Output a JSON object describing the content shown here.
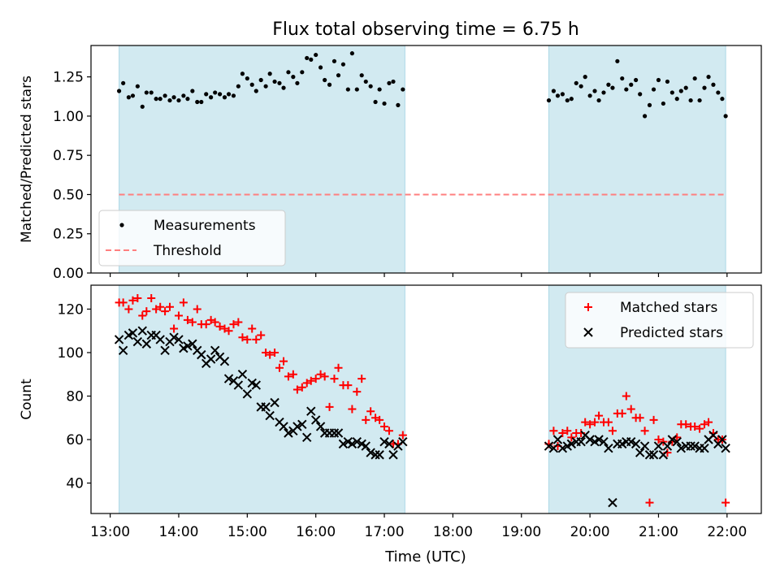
{
  "figure": {
    "title": "Flux total observing time = 6.75 h",
    "xlabel": "Time (UTC)"
  },
  "colors": {
    "shade": "#add8e6",
    "matched": "#ff0000",
    "predicted": "#000000",
    "threshold": "#ff7f7f",
    "measurements": "#000000"
  },
  "chart_data": [
    {
      "type": "scatter",
      "ylabel": "Matched/Predicted stars",
      "xlim": [
        12.72,
        22.5
      ],
      "ylim": [
        0,
        1.45
      ],
      "yticks": [
        0.0,
        0.25,
        0.5,
        0.75,
        1.0,
        1.25
      ],
      "ytick_labels": [
        "0.00",
        "0.25",
        "0.50",
        "0.75",
        "1.00",
        "1.25"
      ],
      "xticks": [
        13,
        14,
        15,
        16,
        17,
        18,
        19,
        20,
        21,
        22
      ],
      "shaded_spans": [
        [
          13.13,
          17.3
        ],
        [
          19.4,
          21.98
        ]
      ],
      "legend": {
        "placement": "lower-left",
        "entries": [
          "Measurements",
          "Threshold"
        ]
      },
      "threshold": {
        "name": "Threshold",
        "y": 0.5,
        "x": [
          13.13,
          21.98
        ]
      },
      "series": [
        {
          "name": "Measurements",
          "x": [
            13.13,
            13.19,
            13.27,
            13.33,
            13.4,
            13.47,
            13.53,
            13.6,
            13.67,
            13.73,
            13.8,
            13.87,
            13.93,
            14.0,
            14.07,
            14.13,
            14.2,
            14.27,
            14.33,
            14.4,
            14.47,
            14.53,
            14.6,
            14.67,
            14.73,
            14.8,
            14.87,
            14.93,
            15.0,
            15.07,
            15.13,
            15.2,
            15.27,
            15.33,
            15.4,
            15.47,
            15.53,
            15.6,
            15.67,
            15.73,
            15.8,
            15.87,
            15.93,
            16.0,
            16.07,
            16.13,
            16.2,
            16.27,
            16.33,
            16.4,
            16.47,
            16.53,
            16.6,
            16.67,
            16.73,
            16.8,
            16.87,
            16.93,
            17.0,
            17.07,
            17.13,
            17.2,
            17.27,
            19.4,
            19.47,
            19.53,
            19.6,
            19.67,
            19.73,
            19.8,
            19.87,
            19.93,
            20.0,
            20.07,
            20.13,
            20.2,
            20.27,
            20.33,
            20.4,
            20.47,
            20.53,
            20.6,
            20.67,
            20.73,
            20.8,
            20.87,
            20.93,
            21.0,
            21.07,
            21.13,
            21.2,
            21.27,
            21.33,
            21.4,
            21.47,
            21.53,
            21.6,
            21.67,
            21.73,
            21.8,
            21.87,
            21.93,
            21.98
          ],
          "y": [
            1.16,
            1.21,
            1.12,
            1.13,
            1.19,
            1.06,
            1.15,
            1.15,
            1.11,
            1.11,
            1.13,
            1.1,
            1.12,
            1.1,
            1.13,
            1.11,
            1.16,
            1.09,
            1.09,
            1.14,
            1.12,
            1.15,
            1.14,
            1.12,
            1.14,
            1.13,
            1.19,
            1.27,
            1.24,
            1.2,
            1.16,
            1.23,
            1.19,
            1.27,
            1.22,
            1.21,
            1.18,
            1.28,
            1.25,
            1.21,
            1.28,
            1.37,
            1.36,
            1.39,
            1.31,
            1.23,
            1.2,
            1.35,
            1.26,
            1.33,
            1.17,
            1.4,
            1.17,
            1.26,
            1.22,
            1.19,
            1.09,
            1.17,
            1.08,
            1.21,
            1.22,
            1.07,
            1.17,
            1.1,
            1.16,
            1.13,
            1.14,
            1.1,
            1.11,
            1.21,
            1.19,
            1.25,
            1.13,
            1.16,
            1.1,
            1.15,
            1.2,
            1.18,
            1.35,
            1.24,
            1.17,
            1.2,
            1.23,
            1.14,
            1.0,
            1.07,
            1.17,
            1.23,
            1.08,
            1.22,
            1.15,
            1.11,
            1.16,
            1.18,
            1.1,
            1.24,
            1.1,
            1.18,
            1.25,
            1.2,
            1.15,
            1.11,
            1.0
          ]
        }
      ]
    },
    {
      "type": "scatter",
      "ylabel": "Count",
      "xlim": [
        12.72,
        22.5
      ],
      "ylim": [
        26,
        131
      ],
      "yticks": [
        40,
        60,
        80,
        100,
        120
      ],
      "ytick_labels": [
        "40",
        "60",
        "80",
        "100",
        "120"
      ],
      "xticks": [
        13,
        14,
        15,
        16,
        17,
        18,
        19,
        20,
        21,
        22
      ],
      "xtick_labels": [
        "13:00",
        "14:00",
        "15:00",
        "16:00",
        "17:00",
        "18:00",
        "19:00",
        "20:00",
        "21:00",
        "22:00"
      ],
      "shaded_spans": [
        [
          13.13,
          17.3
        ],
        [
          19.4,
          21.98
        ]
      ],
      "legend": {
        "placement": "upper-right",
        "entries": [
          "Matched stars",
          "Predicted stars"
        ]
      },
      "series": [
        {
          "name": "Matched stars",
          "marker": "plus",
          "x": [
            13.13,
            13.19,
            13.27,
            13.33,
            13.4,
            13.47,
            13.53,
            13.6,
            13.67,
            13.73,
            13.8,
            13.87,
            13.93,
            14.0,
            14.07,
            14.13,
            14.2,
            14.27,
            14.33,
            14.4,
            14.47,
            14.53,
            14.6,
            14.67,
            14.73,
            14.8,
            14.87,
            14.93,
            15.0,
            15.07,
            15.13,
            15.2,
            15.27,
            15.33,
            15.4,
            15.47,
            15.53,
            15.6,
            15.67,
            15.73,
            15.8,
            15.87,
            15.93,
            16.0,
            16.07,
            16.13,
            16.2,
            16.27,
            16.33,
            16.4,
            16.47,
            16.53,
            16.6,
            16.67,
            16.73,
            16.8,
            16.87,
            16.93,
            17.0,
            17.07,
            17.13,
            17.2,
            17.27,
            19.4,
            19.47,
            19.53,
            19.6,
            19.67,
            19.73,
            19.8,
            19.87,
            19.93,
            20.0,
            20.07,
            20.13,
            20.2,
            20.27,
            20.33,
            20.4,
            20.47,
            20.53,
            20.6,
            20.67,
            20.73,
            20.8,
            20.87,
            20.93,
            21.0,
            21.07,
            21.13,
            21.2,
            21.27,
            21.33,
            21.4,
            21.47,
            21.53,
            21.6,
            21.67,
            21.73,
            21.8,
            21.87,
            21.93,
            21.98
          ],
          "y": [
            123,
            123,
            120,
            124,
            125,
            117,
            119,
            125,
            120,
            121,
            119,
            121,
            111,
            117,
            123,
            115,
            114,
            120,
            113,
            113,
            115,
            114,
            112,
            111,
            110,
            113,
            114,
            107,
            106,
            111,
            106,
            108,
            100,
            99,
            100,
            93,
            96,
            89,
            90,
            83,
            84,
            86,
            87,
            88,
            90,
            89,
            75,
            88,
            93,
            85,
            85,
            74,
            82,
            88,
            69,
            73,
            70,
            69,
            66,
            64,
            58,
            58,
            62,
            58,
            64,
            57,
            63,
            64,
            61,
            63,
            63,
            68,
            67,
            68,
            71,
            68,
            68,
            64,
            72,
            72,
            80,
            74,
            70,
            70,
            64,
            31,
            69,
            60,
            59,
            54,
            59,
            61,
            67,
            67,
            66,
            66,
            65,
            67,
            68,
            63,
            60,
            60,
            31
          ]
        },
        {
          "name": "Predicted stars",
          "marker": "x",
          "x": [
            13.13,
            13.19,
            13.27,
            13.33,
            13.4,
            13.47,
            13.53,
            13.6,
            13.67,
            13.73,
            13.8,
            13.87,
            13.93,
            14.0,
            14.07,
            14.13,
            14.2,
            14.27,
            14.33,
            14.4,
            14.47,
            14.53,
            14.6,
            14.67,
            14.73,
            14.8,
            14.87,
            14.93,
            15.0,
            15.07,
            15.13,
            15.2,
            15.27,
            15.33,
            15.4,
            15.47,
            15.53,
            15.6,
            15.67,
            15.73,
            15.8,
            15.87,
            15.93,
            16.0,
            16.07,
            16.13,
            16.2,
            16.27,
            16.33,
            16.4,
            16.47,
            16.53,
            16.6,
            16.67,
            16.73,
            16.8,
            16.87,
            16.93,
            17.0,
            17.07,
            17.13,
            17.2,
            17.27,
            19.4,
            19.47,
            19.53,
            19.6,
            19.67,
            19.73,
            19.8,
            19.87,
            19.93,
            20.0,
            20.07,
            20.13,
            20.2,
            20.27,
            20.33,
            20.4,
            20.47,
            20.53,
            20.6,
            20.67,
            20.73,
            20.8,
            20.87,
            20.93,
            21.0,
            21.07,
            21.13,
            21.2,
            21.27,
            21.33,
            21.4,
            21.47,
            21.53,
            21.6,
            21.67,
            21.73,
            21.8,
            21.87,
            21.93,
            21.98
          ],
          "y": [
            106,
            101,
            108,
            109,
            105,
            110,
            104,
            108,
            108,
            106,
            101,
            105,
            107,
            106,
            102,
            103,
            104,
            101,
            99,
            95,
            97,
            101,
            98,
            96,
            88,
            87,
            85,
            90,
            81,
            86,
            85,
            75,
            75,
            71,
            77,
            68,
            66,
            63,
            64,
            66,
            67,
            61,
            73,
            69,
            66,
            63,
            63,
            63,
            63,
            58,
            59,
            58,
            59,
            58,
            57,
            54,
            53,
            53,
            59,
            58,
            53,
            57,
            59,
            57,
            56,
            60,
            56,
            57,
            58,
            59,
            59,
            62,
            60,
            59,
            60,
            59,
            56,
            31,
            58,
            58,
            59,
            59,
            58,
            54,
            57,
            53,
            53,
            57,
            53,
            57,
            60,
            59,
            56,
            57,
            57,
            57,
            56,
            56,
            60,
            62,
            58,
            60,
            56
          ]
        }
      ]
    }
  ]
}
